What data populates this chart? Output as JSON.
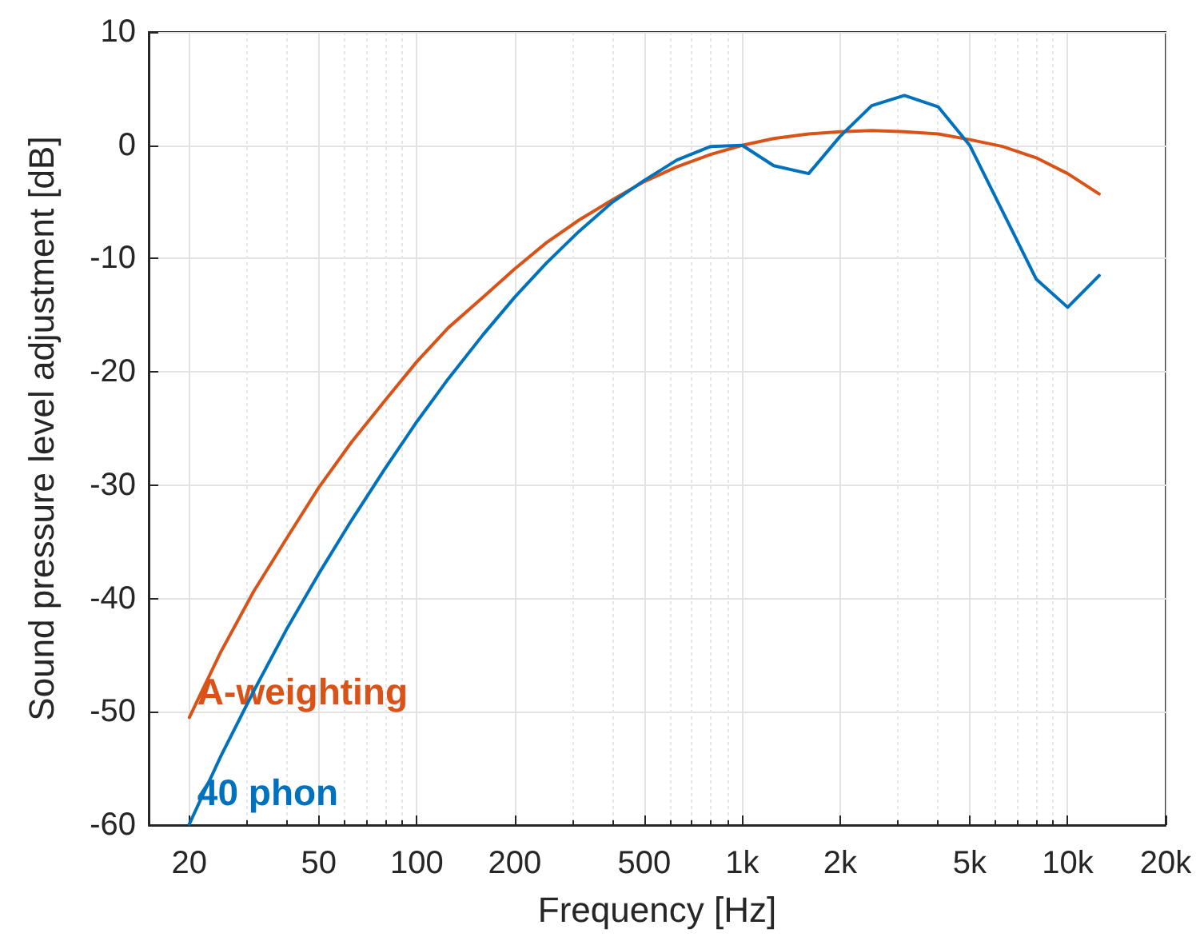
{
  "chart_data": {
    "type": "line",
    "xlabel": "Frequency [Hz]",
    "ylabel": "Sound pressure level adjustment [dB]",
    "x": [
      20,
      25,
      31.5,
      40,
      50,
      63,
      80,
      100,
      125,
      160,
      200,
      250,
      315,
      400,
      500,
      630,
      800,
      1000,
      1250,
      1600,
      2000,
      2500,
      3150,
      4000,
      5000,
      6300,
      8000,
      10000,
      12500
    ],
    "series": [
      {
        "name": "A-weighting",
        "color": "#d95319",
        "values": [
          -50.5,
          -44.7,
          -39.4,
          -34.6,
          -30.2,
          -26.2,
          -22.5,
          -19.1,
          -16.1,
          -13.4,
          -10.9,
          -8.6,
          -6.6,
          -4.8,
          -3.2,
          -1.9,
          -0.8,
          0,
          0.6,
          1.0,
          1.2,
          1.3,
          1.2,
          1.0,
          0.5,
          -0.1,
          -1.1,
          -2.5,
          -4.3
        ]
      },
      {
        "name": "40 phon",
        "color": "#0072bd",
        "values": [
          -59.9,
          -53.9,
          -48.2,
          -42.6,
          -37.8,
          -33.1,
          -28.5,
          -24.4,
          -20.6,
          -16.7,
          -13.4,
          -10.4,
          -7.6,
          -5.0,
          -3.1,
          -1.3,
          -0.1,
          0,
          -1.8,
          -2.5,
          0.8,
          3.5,
          4.4,
          3.4,
          0,
          -5.8,
          -11.8,
          -14.3,
          -11.5
        ]
      }
    ],
    "log": "x",
    "xlim": [
      15,
      20000
    ],
    "xticks": [
      20,
      {
        "value": 30,
        "label": null
      },
      {
        "value": 40,
        "label": null
      },
      50,
      {
        "value": 60,
        "label": null
      },
      {
        "value": 70,
        "label": null
      },
      {
        "value": 80,
        "label": null
      },
      {
        "value": 90,
        "label": null
      },
      100,
      200,
      {
        "value": 300,
        "label": null
      },
      {
        "value": 400,
        "label": null
      },
      500,
      {
        "value": 600,
        "label": null
      },
      {
        "value": 700,
        "label": null
      },
      {
        "value": 800,
        "label": null
      },
      {
        "value": 900,
        "label": null
      },
      {
        "value": 1000,
        "label": "1k"
      },
      {
        "value": 2000,
        "label": "2k"
      },
      {
        "value": 3000,
        "label": null
      },
      {
        "value": 4000,
        "label": null
      },
      {
        "value": 5000,
        "label": "5k"
      },
      {
        "value": 6000,
        "label": null
      },
      {
        "value": 7000,
        "label": null
      },
      {
        "value": 8000,
        "label": null
      },
      {
        "value": 9000,
        "label": null
      },
      {
        "value": 10000,
        "label": "10k"
      },
      {
        "value": 20000,
        "label": "20k"
      }
    ],
    "ylim": [
      -60,
      10
    ],
    "yticks": [
      -60,
      -50,
      -40,
      -30,
      -20,
      -10,
      0,
      10
    ],
    "grid": true,
    "legend": false,
    "marker": "none",
    "line_style": "solid"
  }
}
